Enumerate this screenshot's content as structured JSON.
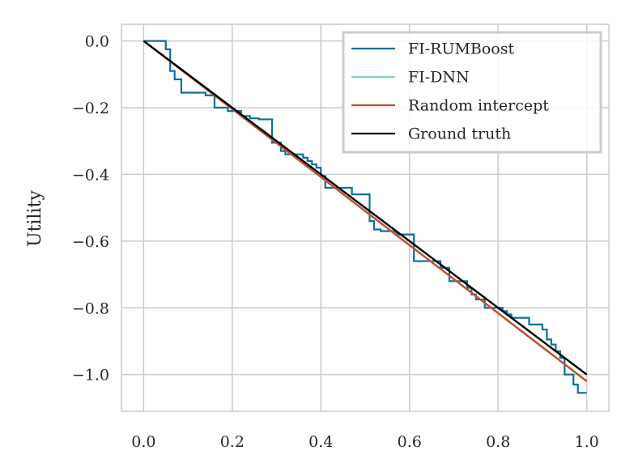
{
  "chart_data": {
    "type": "line",
    "title": "",
    "xlabel": "",
    "ylabel": "Utility",
    "xlim": [
      -0.05,
      1.05
    ],
    "ylim": [
      -1.11,
      0.05
    ],
    "xticks": [
      "0.0",
      "0.2",
      "0.4",
      "0.6",
      "0.8",
      "1.0"
    ],
    "xtick_values": [
      0.0,
      0.2,
      0.4,
      0.6,
      0.8,
      1.0
    ],
    "yticks": [
      "0.0",
      "−0.2",
      "−0.4",
      "−0.6",
      "−0.8",
      "−1.0"
    ],
    "ytick_values": [
      0.0,
      -0.2,
      -0.4,
      -0.6,
      -0.8,
      -1.0
    ],
    "grid": true,
    "legend_position": "top-right",
    "series": [
      {
        "name": "FI-RUMBoost",
        "color": "#0a6e9a",
        "step": true,
        "x": [
          0.0,
          0.05,
          0.06,
          0.07,
          0.085,
          0.14,
          0.16,
          0.19,
          0.22,
          0.24,
          0.26,
          0.28,
          0.29,
          0.31,
          0.32,
          0.36,
          0.37,
          0.38,
          0.39,
          0.4,
          0.41,
          0.43,
          0.47,
          0.5,
          0.51,
          0.52,
          0.535,
          0.57,
          0.6,
          0.61,
          0.67,
          0.69,
          0.72,
          0.73,
          0.74,
          0.75,
          0.77,
          0.79,
          0.81,
          0.82,
          0.83,
          0.87,
          0.9,
          0.91,
          0.92,
          0.93,
          0.94,
          0.95,
          0.97,
          0.98,
          1.0
        ],
        "y": [
          0.0,
          -0.025,
          -0.09,
          -0.115,
          -0.155,
          -0.163,
          -0.2,
          -0.21,
          -0.225,
          -0.232,
          -0.235,
          -0.235,
          -0.305,
          -0.33,
          -0.34,
          -0.35,
          -0.36,
          -0.37,
          -0.38,
          -0.405,
          -0.44,
          -0.44,
          -0.46,
          -0.46,
          -0.54,
          -0.565,
          -0.57,
          -0.58,
          -0.58,
          -0.66,
          -0.68,
          -0.72,
          -0.72,
          -0.74,
          -0.76,
          -0.775,
          -0.8,
          -0.8,
          -0.81,
          -0.82,
          -0.83,
          -0.85,
          -0.865,
          -0.895,
          -0.91,
          -0.93,
          -0.95,
          -1.0,
          -1.03,
          -1.055,
          -1.055
        ]
      },
      {
        "name": "FI-DNN",
        "color": "#7fd1c0",
        "step": false,
        "x": [
          0.0,
          1.0
        ],
        "y": [
          0.0,
          -1.02
        ]
      },
      {
        "name": "Random intercept",
        "color": "#c1502e",
        "step": false,
        "x": [
          0.0,
          1.0
        ],
        "y": [
          0.0,
          -1.02
        ]
      },
      {
        "name": "Ground truth",
        "color": "#000000",
        "step": false,
        "x": [
          0.0,
          1.0
        ],
        "y": [
          0.0,
          -1.0
        ]
      }
    ]
  }
}
